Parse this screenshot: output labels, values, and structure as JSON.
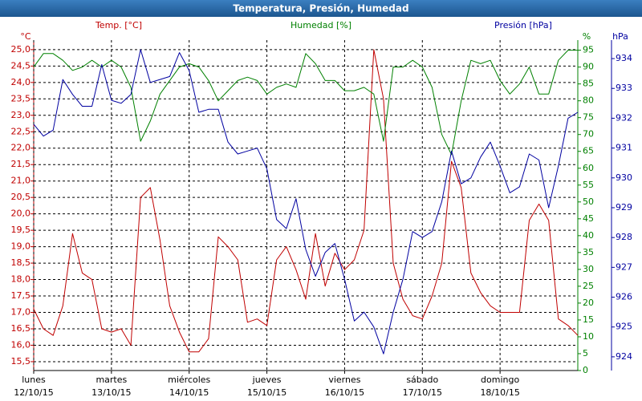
{
  "chart_data": {
    "type": "line",
    "title": "Temperatura, Presión, Humedad",
    "axis_titles": {
      "y": "Temp. [°C]",
      "y_unit": "°C",
      "y2": "Humedad [%]",
      "y2_unit": "%",
      "y3": "Presión [hPa]",
      "y3_unit": "hPa"
    },
    "x": [
      0,
      3,
      6,
      9,
      12,
      15,
      18,
      21,
      24,
      27,
      30,
      33,
      36,
      39,
      42,
      45,
      48,
      51,
      54,
      57,
      60,
      63,
      66,
      69,
      72,
      75,
      78,
      81,
      84,
      87,
      90,
      93,
      96,
      99,
      102,
      105,
      108,
      111,
      114,
      117,
      120,
      123,
      126,
      129,
      132,
      135,
      138,
      141,
      144,
      147,
      150,
      153,
      156,
      159,
      162,
      165,
      168
    ],
    "xlim": [
      0,
      168
    ],
    "xticks": [
      {
        "value": 0,
        "label": "lunes",
        "date": "12/10/15"
      },
      {
        "value": 24,
        "label": "martes",
        "date": "13/10/15"
      },
      {
        "value": 48,
        "label": "miércoles",
        "date": "14/10/15"
      },
      {
        "value": 72,
        "label": "jueves",
        "date": "15/10/15"
      },
      {
        "value": 96,
        "label": "viernes",
        "date": "16/10/15"
      },
      {
        "value": 120,
        "label": "sábado",
        "date": "17/10/15"
      },
      {
        "value": 144,
        "label": "domingo",
        "date": "18/10/15"
      }
    ],
    "ylim": [
      15.23,
      25.29
    ],
    "yticks": [
      {
        "value": 15.5,
        "label": "15,5"
      },
      {
        "value": 16,
        "label": "16,0"
      },
      {
        "value": 16.5,
        "label": "16,5"
      },
      {
        "value": 17,
        "label": "17,0"
      },
      {
        "value": 17.5,
        "label": "17,5"
      },
      {
        "value": 18,
        "label": "18,0"
      },
      {
        "value": 18.5,
        "label": "18,5"
      },
      {
        "value": 19,
        "label": "19,0"
      },
      {
        "value": 19.5,
        "label": "19,5"
      },
      {
        "value": 20,
        "label": "20,0"
      },
      {
        "value": 20.5,
        "label": "20,5"
      },
      {
        "value": 21,
        "label": "21,0"
      },
      {
        "value": 21.5,
        "label": "21,5"
      },
      {
        "value": 22,
        "label": "22,0"
      },
      {
        "value": 22.5,
        "label": "22,5"
      },
      {
        "value": 23,
        "label": "23,0"
      },
      {
        "value": 23.5,
        "label": "23,5"
      },
      {
        "value": 24,
        "label": "24,0"
      },
      {
        "value": 24.5,
        "label": "24,5"
      },
      {
        "value": 25,
        "label": "25,0"
      }
    ],
    "y2lim": [
      0,
      98
    ],
    "y2ticks": [
      0,
      5,
      10,
      15,
      20,
      25,
      30,
      35,
      40,
      45,
      50,
      55,
      60,
      65,
      70,
      75,
      80,
      85,
      90,
      95
    ],
    "y3lim": [
      923.54,
      934.62
    ],
    "y3ticks": [
      924,
      925,
      926,
      927,
      928,
      929,
      930,
      931,
      932,
      933,
      934
    ],
    "grid": true,
    "series": [
      {
        "name": "Temp.",
        "color": "#c00000",
        "axis": "y",
        "values": [
          17.1,
          16.5,
          16.3,
          17.2,
          19.4,
          18.2,
          18.0,
          16.5,
          16.4,
          16.5,
          16.0,
          20.5,
          20.8,
          19.2,
          17.2,
          16.4,
          15.8,
          15.8,
          16.2,
          19.3,
          19.0,
          18.6,
          16.7,
          16.8,
          16.6,
          18.6,
          19.0,
          18.3,
          17.4,
          19.4,
          17.8,
          18.8,
          18.3,
          18.6,
          19.5,
          25.0,
          23.5,
          18.5,
          17.4,
          16.9,
          16.8,
          17.5,
          18.5,
          21.6,
          20.8,
          18.2,
          17.6,
          17.2,
          17.0,
          17.0,
          17.0,
          19.8,
          20.3,
          19.8,
          16.8,
          16.6,
          16.3
        ]
      },
      {
        "name": "Humedad",
        "color": "#008000",
        "axis": "y2",
        "values": [
          90,
          94,
          94,
          92,
          89,
          90,
          92,
          90,
          92,
          90,
          84,
          68,
          74,
          82,
          86,
          90,
          91,
          90,
          86,
          80,
          83,
          86,
          87,
          86,
          82,
          84,
          85,
          84,
          94,
          91,
          86,
          86,
          83,
          83,
          84,
          82,
          68,
          90,
          90,
          92,
          90,
          84,
          70,
          64,
          80,
          92,
          91,
          92,
          86,
          82,
          85,
          90,
          82,
          82,
          92,
          95,
          95
        ]
      },
      {
        "name": "Presión",
        "color": "#0000a0",
        "axis": "y3",
        "values": [
          931.8,
          931.4,
          931.6,
          933.3,
          932.8,
          932.4,
          932.4,
          933.8,
          932.6,
          932.5,
          932.8,
          934.3,
          933.2,
          933.3,
          933.4,
          934.2,
          933.6,
          932.2,
          932.3,
          932.3,
          931.2,
          930.8,
          930.9,
          931.0,
          930.3,
          928.6,
          928.3,
          929.3,
          927.6,
          926.7,
          927.5,
          927.8,
          926.6,
          925.2,
          925.5,
          925.0,
          924.1,
          925.5,
          926.6,
          928.2,
          928.0,
          928.2,
          929.2,
          930.9,
          929.8,
          930.0,
          930.7,
          931.2,
          930.4,
          929.5,
          929.7,
          930.8,
          930.6,
          929.0,
          930.4,
          932.0,
          932.2
        ]
      }
    ]
  }
}
